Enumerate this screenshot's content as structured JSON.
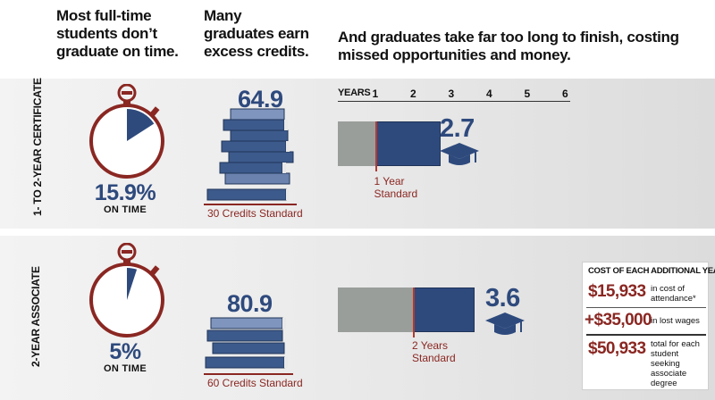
{
  "headings": {
    "col1": "Most full-time students don’t graduate on time.",
    "col2": "Many graduates earn excess credits.",
    "col3": "And graduates take far too long to finish, costing missed opportunities and money."
  },
  "rows": [
    {
      "label": "1- TO 2-YEAR CERTIFICATE",
      "on_time_pct": "15.9%",
      "on_time_fraction": 0.159,
      "on_time_label": "ON TIME",
      "credits_earned": "64.9",
      "credits_standard": "30 Credits Standard",
      "years_standard_label_line1": "1 Year",
      "years_standard_label_line2": "Standard",
      "years_value_label": "2.7"
    },
    {
      "label": "2-YEAR ASSOCIATE",
      "on_time_pct": "5%",
      "on_time_fraction": 0.05,
      "on_time_label": "ON TIME",
      "credits_earned": "80.9",
      "credits_standard": "60 Credits Standard",
      "years_standard_label_line1": "2 Years",
      "years_standard_label_line2": "Standard",
      "years_value_label": "3.6"
    }
  ],
  "chart_data": {
    "type": "bar",
    "orientation": "horizontal",
    "xlabel": "YEARS",
    "xticks": [
      "1",
      "2",
      "3",
      "4",
      "5",
      "6"
    ],
    "xlim": [
      0,
      6
    ],
    "categories": [
      "1- TO 2-YEAR CERTIFICATE",
      "2-YEAR ASSOCIATE"
    ],
    "values": [
      2.7,
      3.6
    ],
    "standard": [
      1,
      2
    ],
    "colors": {
      "standard_part": "#9a9e9b",
      "excess_part": "#2e4a7d",
      "standard_marker": "#b23a30"
    }
  },
  "cost_box": {
    "title": "COST OF EACH ADDITIONAL YEAR",
    "items": [
      {
        "amount": "$15,933",
        "desc": "in cost of attendance*"
      },
      {
        "amount": "+$35,000",
        "desc": "in lost wages"
      },
      {
        "amount": "$50,933",
        "desc": "total for each student seeking associate degree"
      }
    ]
  },
  "colors": {
    "blue": "#2e4a7d",
    "red": "#8a2722",
    "gray": "#9a9e9b"
  },
  "icons": [
    "stopwatch-icon",
    "book-stack-icon",
    "graduation-cap-icon"
  ]
}
